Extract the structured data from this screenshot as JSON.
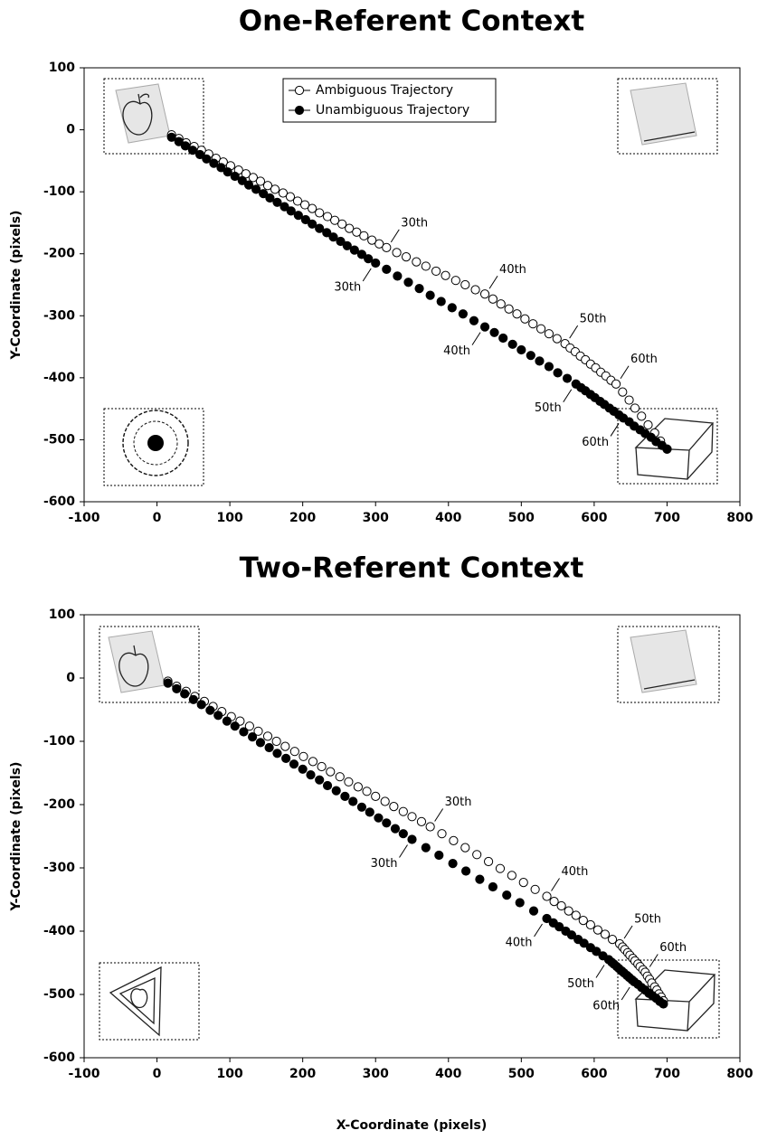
{
  "chart_data": [
    {
      "type": "scatter",
      "title": "One-Referent Context",
      "y_label": "Y-Coordinate (pixels)",
      "xlim": [
        -100,
        800
      ],
      "xticks": [
        -100,
        0,
        100,
        200,
        300,
        400,
        500,
        600,
        700,
        800
      ],
      "ylim": [
        -600,
        100
      ],
      "yticks": [
        -600,
        -500,
        -400,
        -300,
        -200,
        -100,
        0,
        100
      ],
      "grid": false,
      "legend": "top",
      "series": [
        {
          "name": "Ambiguous Trajectory",
          "color": "#000000",
          "marker_fill": "#ffffff",
          "x": [
            20,
            30,
            40,
            51,
            61,
            71,
            81,
            91,
            101,
            112,
            122,
            132,
            142,
            152,
            162,
            173,
            183,
            193,
            203,
            213,
            223,
            234,
            244,
            254,
            264,
            274,
            284,
            295,
            305,
            315,
            329,
            342,
            356,
            369,
            383,
            396,
            410,
            423,
            437,
            450,
            461,
            472,
            483,
            494,
            505,
            516,
            527,
            538,
            549,
            560,
            567,
            574,
            581,
            588,
            595,
            602,
            609,
            616,
            623,
            630,
            639,
            648,
            656,
            665,
            674,
            683,
            691,
            700
          ],
          "values": [
            -8,
            -14,
            -21,
            -27,
            -33,
            -39,
            -46,
            -52,
            -58,
            -65,
            -71,
            -77,
            -83,
            -90,
            -96,
            -102,
            -108,
            -115,
            -121,
            -127,
            -134,
            -140,
            -146,
            -152,
            -159,
            -165,
            -171,
            -178,
            -184,
            -190,
            -198,
            -205,
            -213,
            -220,
            -228,
            -235,
            -243,
            -250,
            -258,
            -265,
            -273,
            -281,
            -289,
            -297,
            -305,
            -313,
            -321,
            -329,
            -337,
            -345,
            -352,
            -358,
            -365,
            -371,
            -378,
            -384,
            -391,
            -397,
            -404,
            -410,
            -423,
            -436,
            -449,
            -462,
            -476,
            -489,
            -502,
            -515
          ],
          "point_labels": [
            null,
            null,
            null,
            null,
            null,
            null,
            null,
            null,
            null,
            null,
            null,
            null,
            null,
            null,
            null,
            null,
            null,
            null,
            null,
            null,
            null,
            null,
            null,
            null,
            null,
            null,
            null,
            null,
            null,
            "30th",
            null,
            null,
            null,
            null,
            null,
            null,
            null,
            null,
            null,
            "40th",
            null,
            null,
            null,
            null,
            null,
            null,
            null,
            null,
            null,
            "50th",
            null,
            null,
            null,
            null,
            null,
            null,
            null,
            null,
            null,
            "60th",
            null,
            null,
            null,
            null,
            null,
            null,
            null,
            null
          ]
        },
        {
          "name": "Unambiguous Trajectory",
          "color": "#000000",
          "marker_fill": "#000000",
          "x": [
            20,
            30,
            39,
            49,
            59,
            68,
            78,
            88,
            97,
            107,
            117,
            126,
            136,
            146,
            155,
            165,
            175,
            184,
            194,
            204,
            213,
            223,
            233,
            242,
            252,
            261,
            271,
            281,
            290,
            300,
            315,
            330,
            345,
            360,
            375,
            390,
            405,
            420,
            435,
            450,
            463,
            475,
            488,
            500,
            513,
            525,
            538,
            550,
            563,
            575,
            582,
            588,
            595,
            601,
            608,
            614,
            621,
            627,
            634,
            640,
            648,
            655,
            663,
            670,
            678,
            685,
            693,
            700
          ],
          "values": [
            -12,
            -19,
            -26,
            -33,
            -40,
            -47,
            -54,
            -61,
            -68,
            -75,
            -82,
            -89,
            -96,
            -103,
            -110,
            -117,
            -124,
            -131,
            -138,
            -145,
            -152,
            -159,
            -166,
            -173,
            -180,
            -187,
            -194,
            -201,
            -208,
            -215,
            -225,
            -236,
            -246,
            -256,
            -267,
            -277,
            -287,
            -297,
            -308,
            -318,
            -327,
            -336,
            -346,
            -355,
            -364,
            -373,
            -382,
            -392,
            -401,
            -410,
            -416,
            -421,
            -427,
            -432,
            -438,
            -443,
            -449,
            -454,
            -460,
            -465,
            -471,
            -478,
            -484,
            -490,
            -496,
            -503,
            -509,
            -515
          ],
          "point_labels": [
            null,
            null,
            null,
            null,
            null,
            null,
            null,
            null,
            null,
            null,
            null,
            null,
            null,
            null,
            null,
            null,
            null,
            null,
            null,
            null,
            null,
            null,
            null,
            null,
            null,
            null,
            null,
            null,
            null,
            "30th",
            null,
            null,
            null,
            null,
            null,
            null,
            null,
            null,
            null,
            "40th",
            null,
            null,
            null,
            null,
            null,
            null,
            null,
            null,
            null,
            "50th",
            null,
            null,
            null,
            null,
            null,
            null,
            null,
            null,
            null,
            "60th",
            null,
            null,
            null,
            null,
            null,
            null,
            null,
            null
          ]
        }
      ]
    },
    {
      "type": "scatter",
      "title": "Two-Referent Context",
      "y_label": "Y-Coordinate (pixels)",
      "x_label": "X-Coordinate (pixels)",
      "xlim": [
        -100,
        800
      ],
      "xticks": [
        -100,
        0,
        100,
        200,
        300,
        400,
        500,
        600,
        700,
        800
      ],
      "ylim": [
        -600,
        100
      ],
      "yticks": [
        -600,
        -500,
        -400,
        -300,
        -200,
        -100,
        0,
        100
      ],
      "grid": false,
      "series": [
        {
          "color": "#000000",
          "marker_fill": "#ffffff",
          "x": [
            15,
            27,
            40,
            52,
            65,
            77,
            89,
            102,
            114,
            127,
            139,
            152,
            164,
            176,
            189,
            201,
            214,
            226,
            238,
            251,
            263,
            276,
            288,
            300,
            313,
            325,
            338,
            350,
            363,
            375,
            391,
            407,
            423,
            439,
            455,
            471,
            487,
            503,
            519,
            535,
            545,
            555,
            565,
            575,
            585,
            595,
            605,
            615,
            625,
            635,
            639,
            642,
            646,
            649,
            653,
            656,
            660,
            663,
            667,
            670,
            673,
            676,
            679,
            683,
            686,
            689,
            692,
            695
          ],
          "values": [
            -5,
            -13,
            -21,
            -29,
            -37,
            -45,
            -53,
            -61,
            -68,
            -76,
            -84,
            -92,
            -100,
            -108,
            -116,
            -124,
            -132,
            -140,
            -148,
            -156,
            -164,
            -172,
            -179,
            -187,
            -195,
            -203,
            -211,
            -219,
            -227,
            -235,
            -246,
            -257,
            -268,
            -279,
            -290,
            -301,
            -312,
            -323,
            -334,
            -345,
            -353,
            -360,
            -368,
            -375,
            -383,
            -390,
            -398,
            -405,
            -413,
            -420,
            -425,
            -429,
            -434,
            -438,
            -443,
            -447,
            -452,
            -456,
            -461,
            -465,
            -471,
            -476,
            -482,
            -488,
            -493,
            -499,
            -504,
            -510
          ],
          "point_labels": [
            null,
            null,
            null,
            null,
            null,
            null,
            null,
            null,
            null,
            null,
            null,
            null,
            null,
            null,
            null,
            null,
            null,
            null,
            null,
            null,
            null,
            null,
            null,
            null,
            null,
            null,
            null,
            null,
            null,
            "30th",
            null,
            null,
            null,
            null,
            null,
            null,
            null,
            null,
            null,
            "40th",
            null,
            null,
            null,
            null,
            null,
            null,
            null,
            null,
            null,
            "50th",
            null,
            null,
            null,
            null,
            null,
            null,
            null,
            null,
            null,
            "60th",
            null,
            null,
            null,
            null,
            null,
            null,
            null,
            null
          ]
        },
        {
          "color": "#000000",
          "marker_fill": "#000000",
          "x": [
            15,
            27,
            38,
            50,
            61,
            73,
            84,
            96,
            107,
            119,
            131,
            142,
            154,
            165,
            177,
            188,
            200,
            211,
            223,
            234,
            246,
            258,
            269,
            281,
            292,
            304,
            315,
            327,
            338,
            350,
            369,
            387,
            406,
            424,
            443,
            461,
            480,
            498,
            517,
            535,
            544,
            552,
            561,
            569,
            578,
            586,
            595,
            603,
            612,
            620,
            624,
            627,
            631,
            634,
            638,
            641,
            645,
            648,
            652,
            655,
            660,
            665,
            670,
            675,
            680,
            685,
            690,
            695
          ],
          "values": [
            -8,
            -17,
            -25,
            -34,
            -42,
            -51,
            -59,
            -68,
            -76,
            -85,
            -93,
            -102,
            -110,
            -119,
            -127,
            -136,
            -144,
            -153,
            -161,
            -170,
            -178,
            -187,
            -195,
            -204,
            -212,
            -221,
            -229,
            -238,
            -246,
            -255,
            -268,
            -280,
            -293,
            -305,
            -318,
            -330,
            -343,
            -355,
            -368,
            -380,
            -387,
            -393,
            -400,
            -406,
            -413,
            -419,
            -426,
            -432,
            -439,
            -445,
            -449,
            -452,
            -456,
            -459,
            -463,
            -466,
            -470,
            -473,
            -477,
            -480,
            -484,
            -489,
            -493,
            -498,
            -502,
            -506,
            -511,
            -515
          ],
          "point_labels": [
            null,
            null,
            null,
            null,
            null,
            null,
            null,
            null,
            null,
            null,
            null,
            null,
            null,
            null,
            null,
            null,
            null,
            null,
            null,
            null,
            null,
            null,
            null,
            null,
            null,
            null,
            null,
            null,
            null,
            "30th",
            null,
            null,
            null,
            null,
            null,
            null,
            null,
            null,
            null,
            "40th",
            null,
            null,
            null,
            null,
            null,
            null,
            null,
            null,
            null,
            "50th",
            null,
            null,
            null,
            null,
            null,
            null,
            null,
            null,
            null,
            "60th",
            null,
            null,
            null,
            null,
            null,
            null,
            null,
            null
          ]
        }
      ]
    }
  ]
}
